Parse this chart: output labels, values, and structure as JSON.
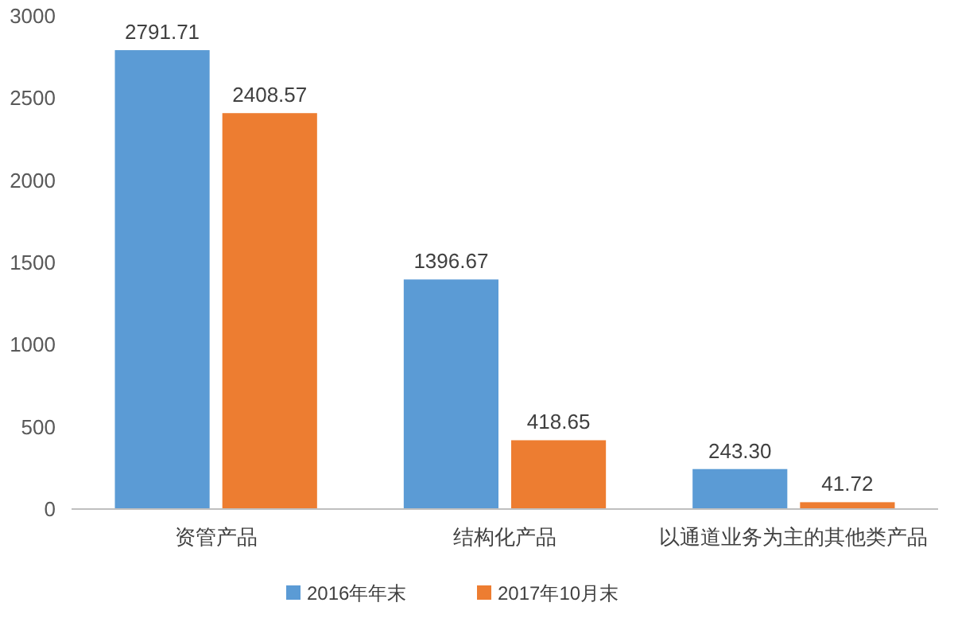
{
  "chart_data": {
    "type": "bar",
    "categories": [
      "资管产品",
      "结构化产品",
      "以通道业务为主的其他类产品"
    ],
    "series": [
      {
        "name": "2016年年末",
        "color": "#5b9bd5",
        "values": [
          2791.71,
          1396.67,
          243.3
        ],
        "value_labels": [
          "2791.71",
          "1396.67",
          "243.30"
        ]
      },
      {
        "name": "2017年10月末",
        "color": "#ed7d31",
        "values": [
          2408.57,
          418.65,
          41.72
        ],
        "value_labels": [
          "2408.57",
          "418.65",
          "41.72"
        ]
      }
    ],
    "ylim": [
      0,
      3000
    ],
    "yticks": [
      0,
      500,
      1000,
      1500,
      2000,
      2500,
      3000
    ],
    "grid": false,
    "legend": "bottom"
  }
}
